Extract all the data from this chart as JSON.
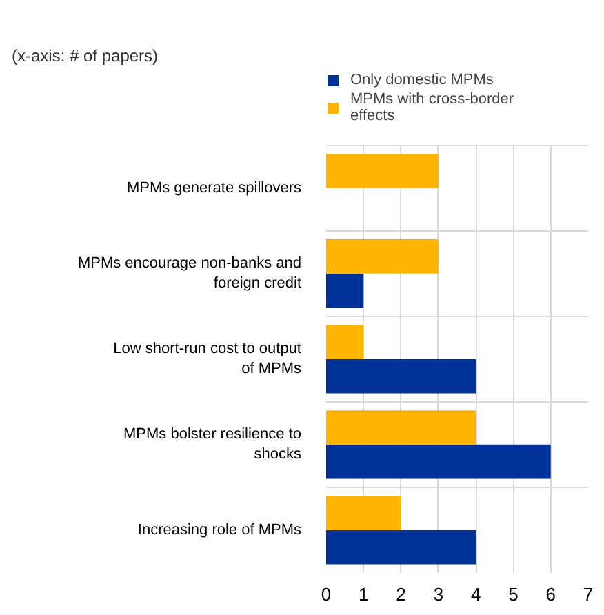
{
  "chart_data": {
    "type": "bar",
    "orientation": "horizontal",
    "title": "(x-axis: # of papers)",
    "categories": [
      "MPMs generate spillovers",
      "MPMs encourage non-banks and foreign credit",
      "Low short-run cost to output of MPMs",
      "MPMs bolster resilience to shocks",
      "Increasing role of MPMs"
    ],
    "series": [
      {
        "name": "Only domestic MPMs",
        "color": "#003299",
        "values": [
          0,
          1,
          4,
          6,
          4
        ]
      },
      {
        "name": "MPMs with cross-border effects",
        "color": "#ffb400",
        "values": [
          3,
          3,
          1,
          4,
          2
        ]
      }
    ],
    "xlim": [
      0,
      7
    ],
    "xticks": [
      0,
      1,
      2,
      3,
      4,
      5,
      6,
      7
    ],
    "grid": true,
    "legend": "top"
  }
}
